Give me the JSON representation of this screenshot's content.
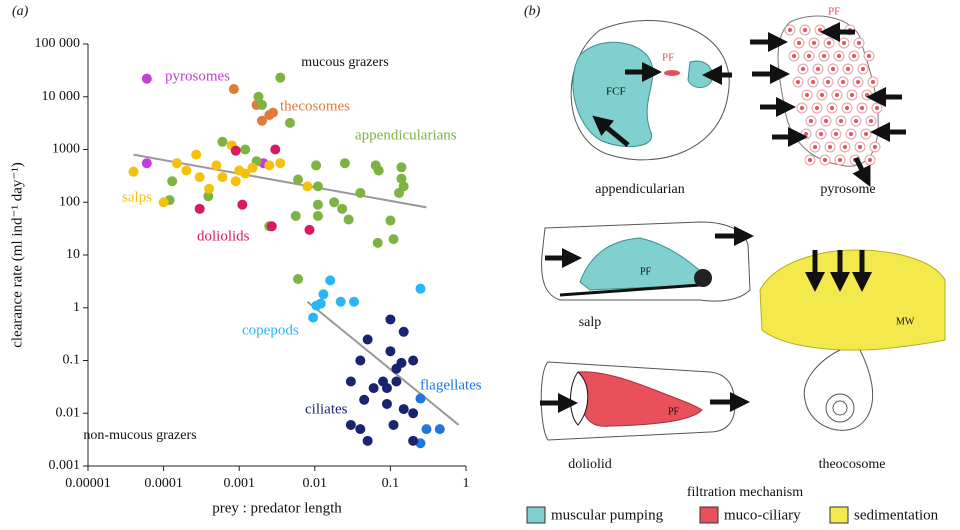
{
  "chart_data": {
    "type": "scatter",
    "panel_label": "(a)",
    "x_label": "prey : predator length",
    "y_label": "clearance rate (ml ind⁻¹ day⁻¹)",
    "log_x": true,
    "log_y": true,
    "xlim": [
      1e-05,
      1
    ],
    "ylim": [
      0.001,
      100000
    ],
    "xticks": [
      1e-05,
      0.0001,
      0.001,
      0.01,
      0.1,
      1
    ],
    "yticks": [
      {
        "value": 100000,
        "label": "100 000"
      },
      {
        "value": 10000,
        "label": "10 000"
      },
      1000,
      100,
      10,
      1,
      0.1,
      0.01,
      0.001
    ],
    "annotations": [
      "mucous grazers",
      "non-mucous grazers"
    ],
    "fit_lines": [
      {
        "color": "#999999",
        "x": [
          4e-05,
          0.3
        ],
        "y": [
          800,
          80
        ]
      },
      {
        "color": "#999999",
        "x": [
          0.008,
          0.8
        ],
        "y": [
          1.3,
          0.006
        ]
      }
    ],
    "series": [
      {
        "name": "pyrosomes",
        "color": "#c23fd6",
        "x": [
          6e-05,
          6e-05,
          0.0021
        ],
        "values": [
          22000,
          550,
          550
        ]
      },
      {
        "name": "thecosomes",
        "color": "#e07b39",
        "x": [
          0.00085,
          0.0017,
          0.0025,
          0.002,
          0.0028
        ],
        "values": [
          14000,
          7000,
          4500,
          3500,
          5000
        ]
      },
      {
        "name": "appendicularians",
        "color": "#7cb342",
        "x": [
          0.0035,
          0.0018,
          0.002,
          0.0047,
          0.0006,
          0.0012,
          0.0017,
          0.0104,
          0.006,
          0.011,
          0.025,
          0.064,
          0.07,
          0.14,
          0.14,
          0.13,
          0.15,
          0.018,
          0.023,
          0.028,
          0.011,
          0.011,
          0.0056,
          0.0025,
          0.068,
          0.11,
          0.1,
          0.04,
          0.00013,
          0.00012,
          0.006,
          0.00039
        ],
        "values": [
          23000,
          10000,
          7000,
          3200,
          1400,
          1000,
          600,
          500,
          270,
          200,
          550,
          500,
          400,
          460,
          280,
          150,
          200,
          100,
          75,
          47,
          55,
          90,
          55,
          35,
          17,
          20,
          45,
          150,
          250,
          110,
          3.5,
          130
        ]
      },
      {
        "name": "salps",
        "color": "#f4c20d",
        "x": [
          4e-05,
          0.0001,
          0.00015,
          0.0002,
          0.00027,
          0.0003,
          0.0004,
          0.0005,
          0.0006,
          0.0008,
          0.0009,
          0.001,
          0.0012,
          0.0015,
          0.0025,
          0.0035,
          0.008
        ],
        "values": [
          380,
          100,
          550,
          400,
          800,
          300,
          180,
          500,
          300,
          1200,
          250,
          400,
          350,
          450,
          500,
          550,
          200
        ]
      },
      {
        "name": "doliolids",
        "color": "#d81b60",
        "x": [
          0.0003,
          0.0009,
          0.0011,
          0.003,
          0.0027,
          0.0085
        ],
        "values": [
          75,
          950,
          90,
          1000,
          35,
          30
        ]
      },
      {
        "name": "copepods",
        "color": "#29b6f6",
        "x": [
          0.016,
          0.013,
          0.033,
          0.022,
          0.012,
          0.0105,
          0.0095,
          0.25
        ],
        "values": [
          3.3,
          1.8,
          1.3,
          1.3,
          1.2,
          1.1,
          0.65,
          2.3
        ]
      },
      {
        "name": "flagellates",
        "color": "#1e78d7",
        "x": [
          0.25,
          0.3,
          0.45,
          0.25
        ],
        "values": [
          0.019,
          0.005,
          0.005,
          0.0027
        ]
      },
      {
        "name": "ciliates",
        "color": "#1a2370",
        "x": [
          0.1,
          0.15,
          0.05,
          0.1,
          0.12,
          0.14,
          0.2,
          0.03,
          0.04,
          0.06,
          0.09,
          0.045,
          0.12,
          0.09,
          0.15,
          0.2,
          0.11,
          0.04,
          0.03,
          0.05,
          0.2,
          0.08
        ],
        "values": [
          0.6,
          0.35,
          0.25,
          0.15,
          0.07,
          0.09,
          0.1,
          0.04,
          0.1,
          0.03,
          0.03,
          0.018,
          0.04,
          0.015,
          0.012,
          0.01,
          0.006,
          0.005,
          0.006,
          0.003,
          0.003,
          0.04
        ]
      }
    ]
  },
  "panel_b": {
    "panel_label": "(b)",
    "organisms": [
      "appendicularian",
      "pyrosome",
      "salp",
      "doliolid",
      "theocosome"
    ],
    "part_labels": [
      "PF",
      "FCF",
      "PF",
      "PF",
      "PF",
      "MW"
    ],
    "legend": {
      "title": "filtration mechanism",
      "items": [
        {
          "label": "muscular pumping",
          "color": "#7fd0cf"
        },
        {
          "label": "muco-ciliary",
          "color": "#e8505b"
        },
        {
          "label": "sedimentation",
          "color": "#f3e94d"
        }
      ]
    }
  }
}
